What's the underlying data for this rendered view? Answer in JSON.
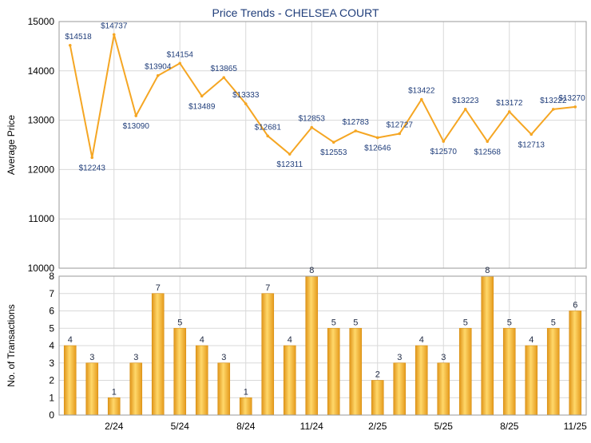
{
  "title": "Price Trends - CHELSEA COURT",
  "chart_data": [
    {
      "type": "line",
      "ylabel": "Average Price",
      "ylim": [
        10000,
        15000
      ],
      "yticks": [
        10000,
        11000,
        12000,
        13000,
        14000,
        15000
      ],
      "grid": true,
      "color": "#f5a623",
      "series": [
        {
          "values": [
            14518,
            12243,
            14737,
            13090,
            13904,
            14154,
            13489,
            13865,
            13333,
            12681,
            12311,
            12853,
            12553,
            12783,
            12646,
            12727,
            13422,
            12570,
            13223,
            12568,
            13172,
            12713,
            13222,
            13270
          ],
          "labels": [
            "$14518",
            "$12243",
            "$14737",
            "$13090",
            "$13904",
            "$14154",
            "$13489",
            "$13865",
            "$13333",
            "$12681",
            "$12311",
            "$12853",
            "$12553",
            "$12783",
            "$12646",
            "$12727",
            "$13422",
            "$12570",
            "$13223",
            "$12568",
            "$13172",
            "$12713",
            "$13222",
            "$13270"
          ]
        }
      ]
    },
    {
      "type": "bar",
      "ylabel": "No. of Transactions",
      "ylim": [
        0,
        8
      ],
      "yticks": [
        0,
        1,
        2,
        3,
        4,
        5,
        6,
        7,
        8
      ],
      "grid": true,
      "color": "#f2b233",
      "series": [
        {
          "values": [
            4,
            3,
            1,
            3,
            7,
            5,
            4,
            3,
            1,
            7,
            4,
            8,
            5,
            5,
            2,
            3,
            4,
            3,
            5,
            8,
            5,
            4,
            5,
            6
          ]
        }
      ],
      "xticks": [
        {
          "index": 2,
          "label": "2/24"
        },
        {
          "index": 5,
          "label": "5/24"
        },
        {
          "index": 8,
          "label": "8/24"
        },
        {
          "index": 11,
          "label": "11/24"
        },
        {
          "index": 14,
          "label": "2/25"
        },
        {
          "index": 17,
          "label": "5/25"
        },
        {
          "index": 20,
          "label": "8/25"
        },
        {
          "index": 23,
          "label": "11/25"
        }
      ]
    }
  ]
}
